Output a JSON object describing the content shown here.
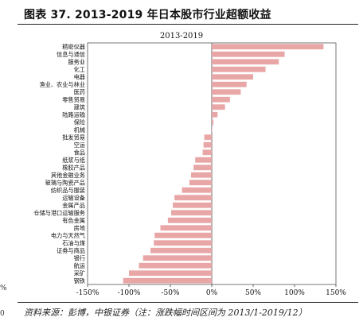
{
  "figure": {
    "title": "图表 37. 2013-2019 年日本股市行业超额收益",
    "source": "资料来源：彭博，中银证券（注：涨跌幅时间区间为 2013/1-2019/12）",
    "side_marks": [
      "%",
      "0"
    ]
  },
  "chart_data": {
    "type": "bar",
    "orientation": "horizontal",
    "title": "2013-2019",
    "categories": [
      "精密仪器",
      "信息与通信",
      "服务业",
      "化工",
      "电器",
      "渔业、农业与林业",
      "医药",
      "零售贸易",
      "建筑",
      "陆路运输",
      "保险",
      "机械",
      "批发贸易",
      "空运",
      "食品",
      "纸浆与纸",
      "橡胶产品",
      "其他金融业务",
      "玻璃与陶瓷产品",
      "纺织品与服装",
      "运输设备",
      "金属产品",
      "仓储与港口运输服务",
      "有色金属",
      "房地",
      "电力与天然气",
      "石油与煤",
      "证券与商品",
      "银行",
      "航运",
      "采矿",
      "钢铁"
    ],
    "values": [
      135,
      88,
      81,
      65,
      50,
      42,
      35,
      22,
      16,
      7,
      2,
      0,
      -9,
      -10,
      -11,
      -20,
      -22,
      -25,
      -27,
      -36,
      -45,
      -47,
      -49,
      -53,
      -62,
      -69,
      -70,
      -74,
      -83,
      -88,
      -100,
      -107
    ],
    "value_unit": "%",
    "xlim": [
      -150,
      150
    ],
    "xticks": [
      "-150%",
      "-100%",
      "-50%",
      "0%",
      "50%",
      "100%",
      "150%"
    ],
    "bar_color": "#e8a6a6",
    "grid": false,
    "legend": "none"
  }
}
